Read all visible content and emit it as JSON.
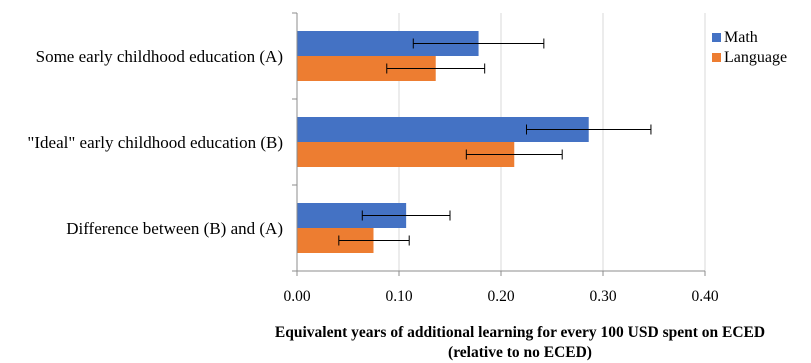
{
  "chart_data": {
    "type": "bar",
    "orientation": "horizontal",
    "categories": [
      "Some early childhood education (A)",
      "\"Ideal\" early childhood education (B)",
      "Difference between (B) and (A)"
    ],
    "series": [
      {
        "name": "Math",
        "color": "#4472C4",
        "values": [
          0.178,
          0.286,
          0.107
        ],
        "error_low": [
          0.114,
          0.225,
          0.064
        ],
        "error_high": [
          0.242,
          0.347,
          0.15
        ]
      },
      {
        "name": "Language",
        "color": "#ED7D31",
        "values": [
          0.136,
          0.213,
          0.075
        ],
        "error_low": [
          0.088,
          0.166,
          0.041
        ],
        "error_high": [
          0.184,
          0.26,
          0.11
        ]
      }
    ],
    "xlim": [
      0,
      0.4
    ],
    "xticks": [
      "0.00",
      "0.10",
      "0.20",
      "0.30",
      "0.40"
    ],
    "xtick_values": [
      0,
      0.1,
      0.2,
      0.3,
      0.4
    ],
    "xlabel_line1": "Equivalent years of additional learning for every 100 USD spent on ECED",
    "xlabel_line2": "(relative to no ECED)",
    "legend_position": "top-right",
    "grid": true
  }
}
